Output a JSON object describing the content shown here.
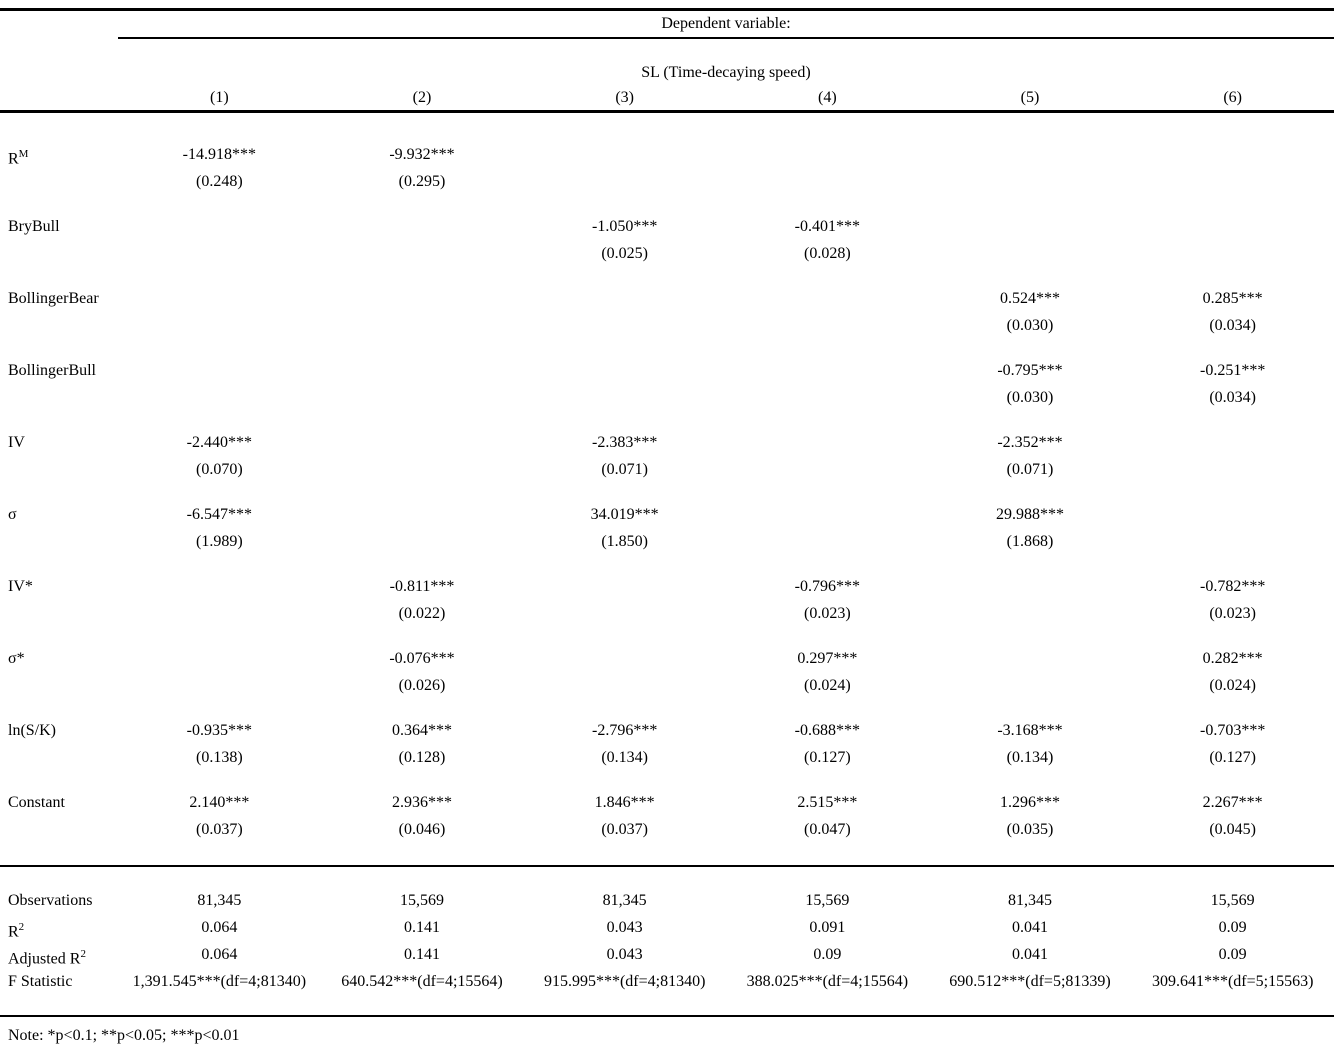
{
  "colors": {
    "text": "#000000",
    "background": "#ffffff",
    "rule": "#000000"
  },
  "table": {
    "header": {
      "dependent_variable_label": "Dependent variable:",
      "dv_name": "SL (Time-decaying speed)",
      "column_numbers": [
        "(1)",
        "(2)",
        "(3)",
        "(4)",
        "(5)",
        "(6)"
      ]
    },
    "coefficient_rows": [
      {
        "label": "R",
        "label_sup": "M",
        "cells": [
          {
            "coef": "-14.918***",
            "se": "(0.248)"
          },
          {
            "coef": "-9.932***",
            "se": "(0.295)"
          },
          null,
          null,
          null,
          null
        ]
      },
      {
        "label": "BryBull",
        "cells": [
          null,
          null,
          {
            "coef": "-1.050***",
            "se": "(0.025)"
          },
          {
            "coef": "-0.401***",
            "se": "(0.028)"
          },
          null,
          null
        ]
      },
      {
        "label": "BollingerBear",
        "cells": [
          null,
          null,
          null,
          null,
          {
            "coef": "0.524***",
            "se": "(0.030)"
          },
          {
            "coef": "0.285***",
            "se": "(0.034)"
          }
        ]
      },
      {
        "label": "BollingerBull",
        "cells": [
          null,
          null,
          null,
          null,
          {
            "coef": "-0.795***",
            "se": "(0.030)"
          },
          {
            "coef": "-0.251***",
            "se": "(0.034)"
          }
        ]
      },
      {
        "label": "IV",
        "cells": [
          {
            "coef": "-2.440***",
            "se": "(0.070)"
          },
          null,
          {
            "coef": "-2.383***",
            "se": "(0.071)"
          },
          null,
          {
            "coef": "-2.352***",
            "se": "(0.071)"
          },
          null
        ]
      },
      {
        "label": "σ",
        "cells": [
          {
            "coef": "-6.547***",
            "se": "(1.989)"
          },
          null,
          {
            "coef": "34.019***",
            "se": "(1.850)"
          },
          null,
          {
            "coef": "29.988***",
            "se": "(1.868)"
          },
          null
        ]
      },
      {
        "label": "IV*",
        "cells": [
          null,
          {
            "coef": "-0.811***",
            "se": "(0.022)"
          },
          null,
          {
            "coef": "-0.796***",
            "se": "(0.023)"
          },
          null,
          {
            "coef": "-0.782***",
            "se": "(0.023)"
          }
        ]
      },
      {
        "label": "σ*",
        "cells": [
          null,
          {
            "coef": "-0.076***",
            "se": "(0.026)"
          },
          null,
          {
            "coef": "0.297***",
            "se": "(0.024)"
          },
          null,
          {
            "coef": "0.282***",
            "se": "(0.024)"
          }
        ]
      },
      {
        "label": "ln(S/K)",
        "cells": [
          {
            "coef": "-0.935***",
            "se": "(0.138)"
          },
          {
            "coef": "0.364***",
            "se": "(0.128)"
          },
          {
            "coef": "-2.796***",
            "se": "(0.134)"
          },
          {
            "coef": "-0.688***",
            "se": "(0.127)"
          },
          {
            "coef": "-3.168***",
            "se": "(0.134)"
          },
          {
            "coef": "-0.703***",
            "se": "(0.127)"
          }
        ]
      },
      {
        "label": "Constant",
        "cells": [
          {
            "coef": "2.140***",
            "se": "(0.037)"
          },
          {
            "coef": "2.936***",
            "se": "(0.046)"
          },
          {
            "coef": "1.846***",
            "se": "(0.037)"
          },
          {
            "coef": "2.515***",
            "se": "(0.047)"
          },
          {
            "coef": "1.296***",
            "se": "(0.035)"
          },
          {
            "coef": "2.267***",
            "se": "(0.045)"
          }
        ]
      }
    ],
    "stats_rows": [
      {
        "label": "Observations",
        "label_sup": "",
        "values": [
          "81,345",
          "15,569",
          "81,345",
          "15,569",
          "81,345",
          "15,569"
        ]
      },
      {
        "label": "R",
        "label_sup": "2",
        "values": [
          "0.064",
          "0.141",
          "0.043",
          "0.091",
          "0.041",
          "0.09"
        ]
      },
      {
        "label": "Adjusted R",
        "label_sup": "2",
        "values": [
          "0.064",
          "0.141",
          "0.043",
          "0.09",
          "0.041",
          "0.09"
        ]
      },
      {
        "label": "F Statistic",
        "label_sup": "",
        "values": [
          "1,391.545***(df=4;81340)",
          "640.542***(df=4;15564)",
          "915.995***(df=4;81340)",
          "388.025***(df=4;15564)",
          "690.512***(df=5;81339)",
          "309.641***(df=5;15563)"
        ]
      }
    ],
    "note": "Note: *p<0.1; **p<0.05; ***p<0.01"
  }
}
